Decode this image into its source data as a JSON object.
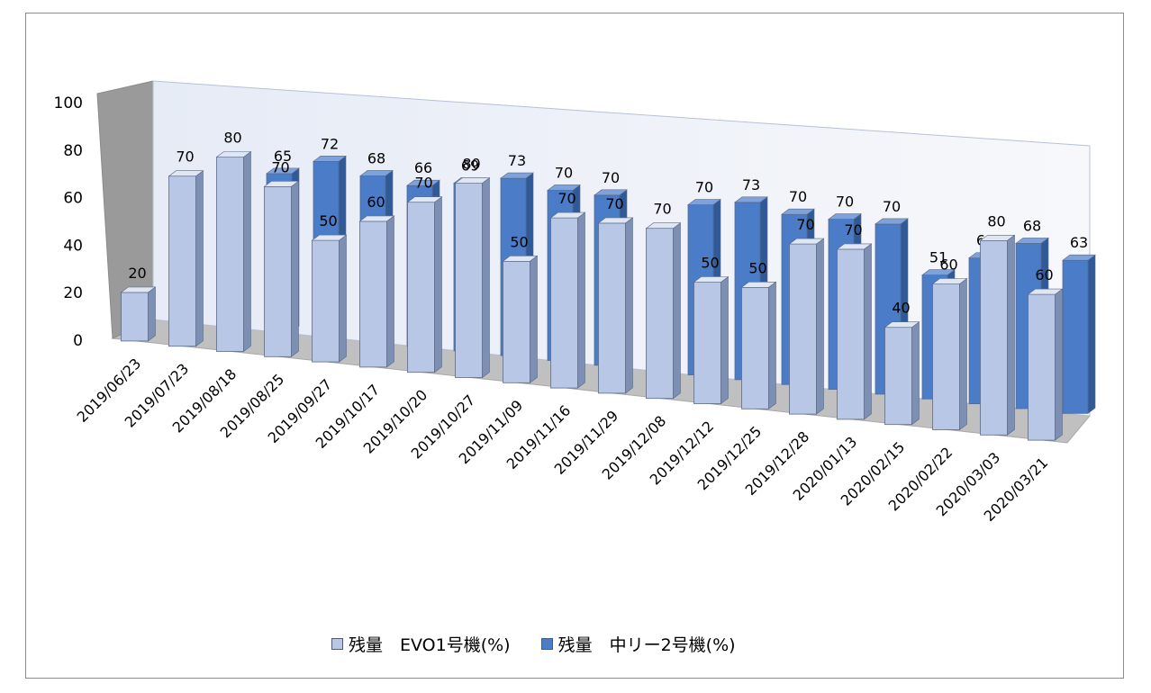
{
  "chart_data": {
    "type": "bar",
    "title": "",
    "xlabel": "",
    "ylabel": "",
    "ylim": [
      0,
      100
    ],
    "yticks": [
      0,
      20,
      40,
      60,
      80,
      100
    ],
    "categories": [
      "2019/06/23",
      "2019/07/23",
      "2019/08/18",
      "2019/08/25",
      "2019/09/27",
      "2019/10/17",
      "2019/10/20",
      "2019/10/27",
      "2019/11/09",
      "2019/11/16",
      "2019/11/29",
      "2019/12/08",
      "2019/12/12",
      "2019/12/25",
      "2019/12/28",
      "2020/01/13",
      "2020/02/15",
      "2020/02/22",
      "2020/03/03",
      "2020/03/21"
    ],
    "series": [
      {
        "name": "残量　EVO1号機(%)",
        "color": "#b8c7e6",
        "values": [
          20,
          70,
          80,
          70,
          50,
          60,
          70,
          80,
          50,
          70,
          70,
          70,
          50,
          50,
          70,
          70,
          40,
          60,
          80,
          60
        ]
      },
      {
        "name": "残量　中リー2号機(%)",
        "color": "#4a7cc7",
        "values": [
          null,
          null,
          65,
          72,
          68,
          66,
          69,
          73,
          70,
          70,
          null,
          70,
          73,
          70,
          70,
          70,
          51,
          60,
          68,
          63
        ]
      }
    ],
    "legend_position": "bottom",
    "style": "3d-clustered-column"
  }
}
